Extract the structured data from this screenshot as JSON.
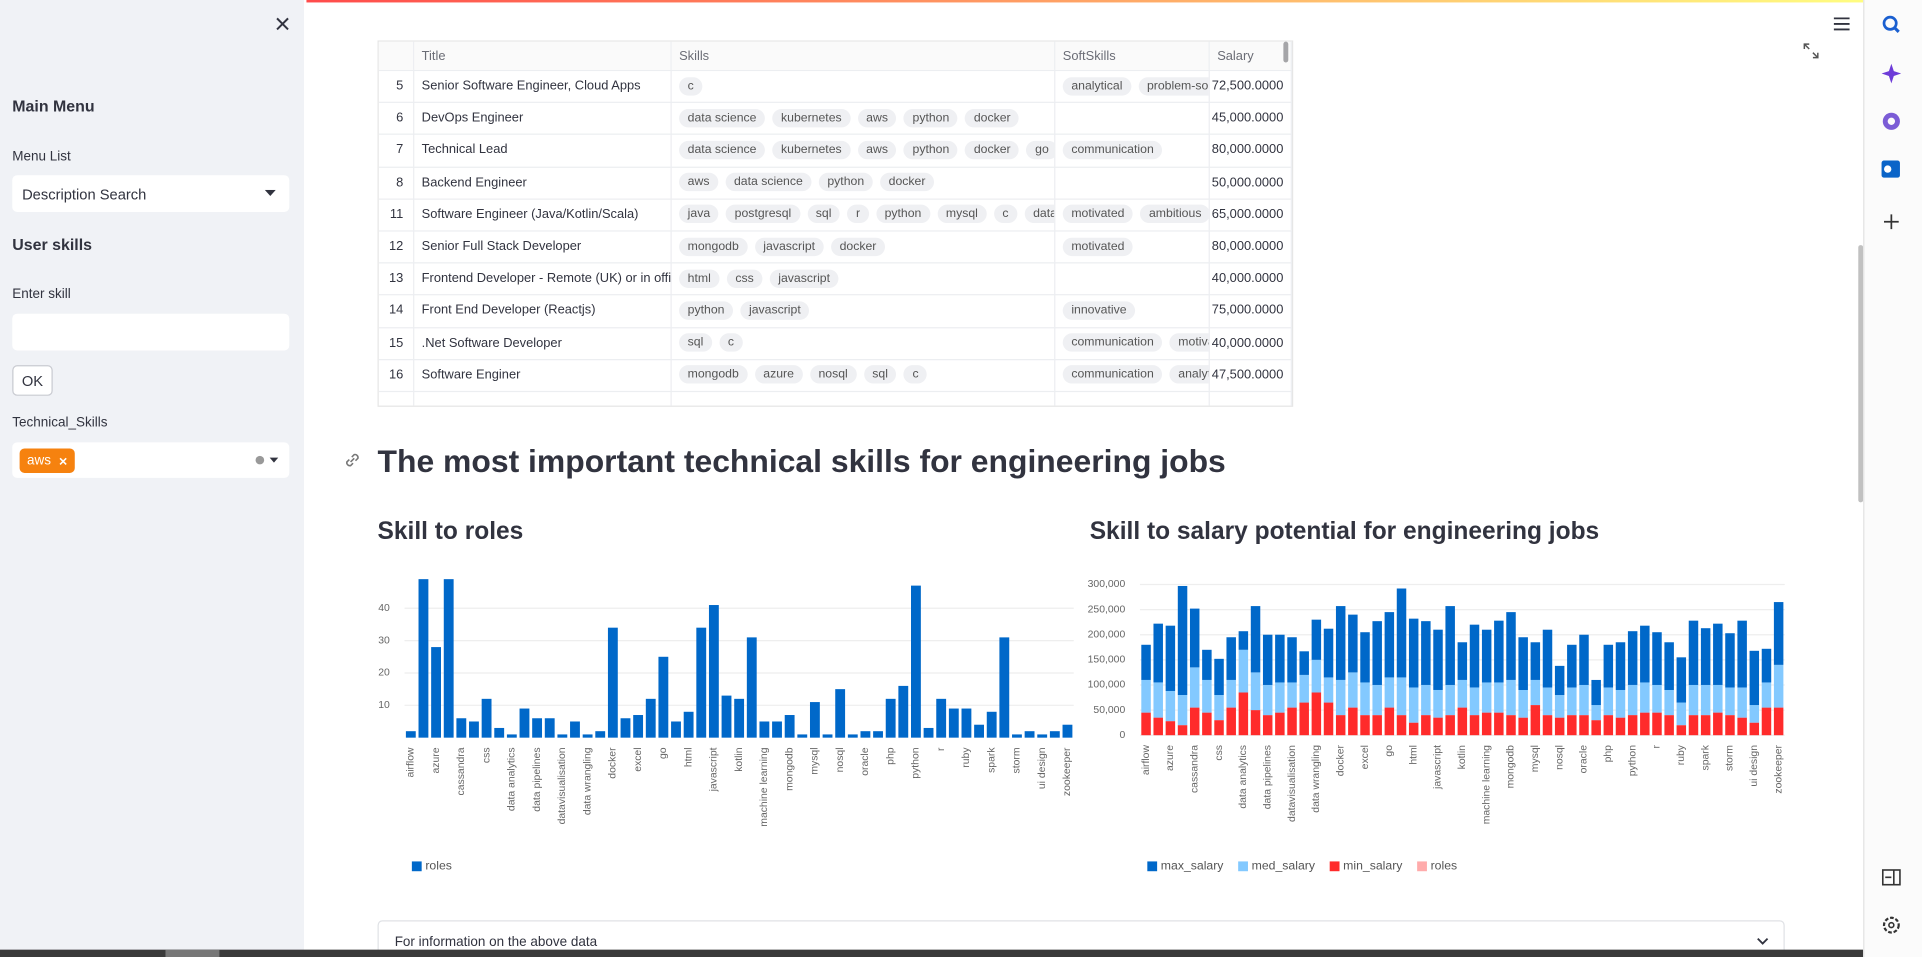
{
  "sidebar": {
    "title": "Main Menu",
    "menu_label": "Menu List",
    "menu_value": "Description Search",
    "section": "User skills",
    "input_label": "Enter skill",
    "button": "OK",
    "multiselect_label": "Technical_Skills",
    "selected": [
      "aws"
    ]
  },
  "table": {
    "columns": [
      "Title",
      "Skills",
      "SoftSkills",
      "Salary"
    ],
    "rows": [
      {
        "index": 5,
        "title": "Senior Software Engineer, Cloud Apps",
        "skills": [
          "c"
        ],
        "soft_skills": [
          "analytical",
          "problem-solving"
        ],
        "salary": "72,500.0000"
      },
      {
        "index": 6,
        "title": "DevOps Engineer",
        "skills": [
          "data science",
          "kubernetes",
          "aws",
          "python",
          "docker"
        ],
        "soft_skills": [],
        "salary": "45,000.0000"
      },
      {
        "index": 7,
        "title": "Technical Lead",
        "skills": [
          "data science",
          "kubernetes",
          "aws",
          "python",
          "docker",
          "go"
        ],
        "soft_skills": [
          "communication"
        ],
        "salary": "80,000.0000"
      },
      {
        "index": 8,
        "title": "Backend Engineer",
        "skills": [
          "aws",
          "data science",
          "python",
          "docker"
        ],
        "soft_skills": [],
        "salary": "50,000.0000"
      },
      {
        "index": 11,
        "title": "Software Engineer (Java/Kotlin/Scala)",
        "skills": [
          "java",
          "postgresql",
          "sql",
          "r",
          "python",
          "mysql",
          "c",
          "data analysis"
        ],
        "soft_skills": [
          "motivated",
          "ambitious"
        ],
        "salary": "65,000.0000"
      },
      {
        "index": 12,
        "title": "Senior Full Stack Developer",
        "skills": [
          "mongodb",
          "javascript",
          "docker"
        ],
        "soft_skills": [
          "motivated"
        ],
        "salary": "80,000.0000"
      },
      {
        "index": 13,
        "title": "Frontend Developer - Remote (UK) or in office",
        "skills": [
          "html",
          "css",
          "javascript"
        ],
        "soft_skills": [],
        "salary": "40,000.0000"
      },
      {
        "index": 14,
        "title": "Front End Developer (Reactjs)",
        "skills": [
          "python",
          "javascript"
        ],
        "soft_skills": [
          "innovative"
        ],
        "salary": "75,000.0000"
      },
      {
        "index": 15,
        "title": ".Net Software Developer",
        "skills": [
          "sql",
          "c"
        ],
        "soft_skills": [
          "communication",
          "motivated"
        ],
        "salary": "40,000.0000"
      },
      {
        "index": 16,
        "title": "Software Enginer",
        "skills": [
          "mongodb",
          "azure",
          "nosql",
          "sql",
          "c"
        ],
        "soft_skills": [
          "communication",
          "analytical"
        ],
        "salary": "47,500.0000"
      }
    ]
  },
  "heading": "The most important technical skills for engineering jobs",
  "chart_data": [
    {
      "type": "bar",
      "title": "Skill to roles",
      "categories": [
        "airflow",
        null,
        "azure",
        null,
        "cassandra",
        null,
        "css",
        null,
        "data analytics",
        null,
        "data pipelines",
        null,
        "datavisualisation",
        null,
        "data wrangling",
        null,
        "docker",
        null,
        "excel",
        null,
        "go",
        null,
        "html",
        null,
        "javascript",
        null,
        "kotlin",
        null,
        "machine learning",
        null,
        "mongodb",
        null,
        "mysql",
        null,
        "nosql",
        null,
        "oracle",
        null,
        "php",
        null,
        "python",
        null,
        "r",
        null,
        "ruby",
        null,
        "spark",
        null,
        "storm",
        null,
        "ui design",
        null,
        "zookeeper"
      ],
      "series": [
        {
          "name": "roles",
          "color": "#0068c9",
          "values": [
            2,
            49,
            28,
            49,
            6,
            5,
            12,
            3,
            1,
            9,
            6,
            6,
            1,
            5,
            1,
            2,
            34,
            6,
            7,
            12,
            25,
            5,
            8,
            34,
            41,
            13,
            12,
            31,
            5,
            5,
            7,
            1,
            11,
            1,
            15,
            1,
            2,
            2,
            12,
            16,
            47,
            3,
            12,
            9,
            9,
            4,
            8,
            31,
            1,
            2,
            1,
            2,
            4
          ]
        }
      ],
      "ylim": [
        0,
        50
      ],
      "yticks": [
        10,
        20,
        30,
        40
      ],
      "grid": true,
      "legend": "bottom-left"
    },
    {
      "type": "stacked_bar",
      "title": "Skill to salary potential for engineering jobs",
      "categories": [
        "airflow",
        null,
        "azure",
        null,
        "cassandra",
        null,
        "css",
        null,
        "data analytics",
        null,
        "data pipelines",
        null,
        "datavisualisation",
        null,
        "data wrangling",
        null,
        "docker",
        null,
        "excel",
        null,
        "go",
        null,
        "html",
        null,
        "javascript",
        null,
        "kotlin",
        null,
        "machine learning",
        null,
        "mongodb",
        null,
        "mysql",
        null,
        "nosql",
        null,
        "oracle",
        null,
        "php",
        null,
        "python",
        null,
        "r",
        null,
        "ruby",
        null,
        "spark",
        null,
        "storm",
        null,
        "ui design",
        null,
        "zookeeper"
      ],
      "series": [
        {
          "name": "max_salary",
          "color": "#0068c9",
          "values": [
            70000,
            117000,
            130000,
            217000,
            117000,
            60000,
            72000,
            85000,
            37000,
            132000,
            100000,
            95000,
            90000,
            47000,
            80000,
            97000,
            147000,
            115000,
            100000,
            127000,
            130000,
            177000,
            137000,
            127000,
            120000,
            157000,
            75000,
            125000,
            105000,
            123000,
            135000,
            105000,
            75000,
            115000,
            58000,
            85000,
            100000,
            50000,
            85000,
            95000,
            107000,
            113000,
            105000,
            95000,
            90000,
            128000,
            113000,
            122000,
            108000,
            133000,
            108000,
            67000,
            125000
          ]
        },
        {
          "name": "med_salary",
          "color": "#83c9ff",
          "values": [
            65000,
            70000,
            60000,
            60000,
            80000,
            65000,
            50000,
            55000,
            85000,
            75000,
            60000,
            60000,
            50000,
            55000,
            65000,
            50000,
            70000,
            70000,
            65000,
            60000,
            60000,
            75000,
            70000,
            60000,
            55000,
            60000,
            55000,
            55000,
            60000,
            60000,
            70000,
            55000,
            50000,
            55000,
            45000,
            55000,
            60000,
            30000,
            55000,
            55000,
            60000,
            60000,
            55000,
            50000,
            45000,
            60000,
            60000,
            55000,
            55000,
            60000,
            35000,
            50000,
            85000
          ]
        },
        {
          "name": "min_salary",
          "color": "#ff2b2b",
          "values": [
            45000,
            35000,
            28000,
            20000,
            55000,
            45000,
            30000,
            55000,
            85000,
            50000,
            40000,
            45000,
            55000,
            65000,
            85000,
            65000,
            40000,
            55000,
            40000,
            40000,
            55000,
            40000,
            25000,
            40000,
            35000,
            40000,
            55000,
            40000,
            45000,
            45000,
            40000,
            35000,
            60000,
            40000,
            35000,
            40000,
            40000,
            30000,
            40000,
            35000,
            40000,
            45000,
            45000,
            40000,
            20000,
            40000,
            40000,
            45000,
            40000,
            35000,
            25000,
            55000,
            55000
          ]
        },
        {
          "name": "roles",
          "color": "#ffabab",
          "values": [
            2,
            49,
            28,
            49,
            6,
            5,
            12,
            3,
            1,
            9,
            6,
            6,
            1,
            5,
            1,
            2,
            34,
            6,
            7,
            12,
            25,
            5,
            8,
            34,
            41,
            13,
            12,
            31,
            5,
            5,
            7,
            1,
            11,
            1,
            15,
            1,
            2,
            2,
            12,
            16,
            47,
            3,
            12,
            9,
            9,
            4,
            8,
            31,
            1,
            2,
            1,
            2,
            4
          ]
        }
      ],
      "ylim": [
        0,
        310000
      ],
      "yticks": [
        0,
        {
          "value": 50000,
          "label": "50,000"
        },
        {
          "value": 100000,
          "label": "100,000"
        },
        {
          "value": 150000,
          "label": "150,000"
        },
        {
          "value": 200000,
          "label": "200,000"
        },
        {
          "value": 250000,
          "label": "250,000"
        },
        {
          "value": 300000,
          "label": "300,000"
        }
      ],
      "grid": true,
      "legend": "bottom-left"
    }
  ],
  "expander": "For information on the above data"
}
